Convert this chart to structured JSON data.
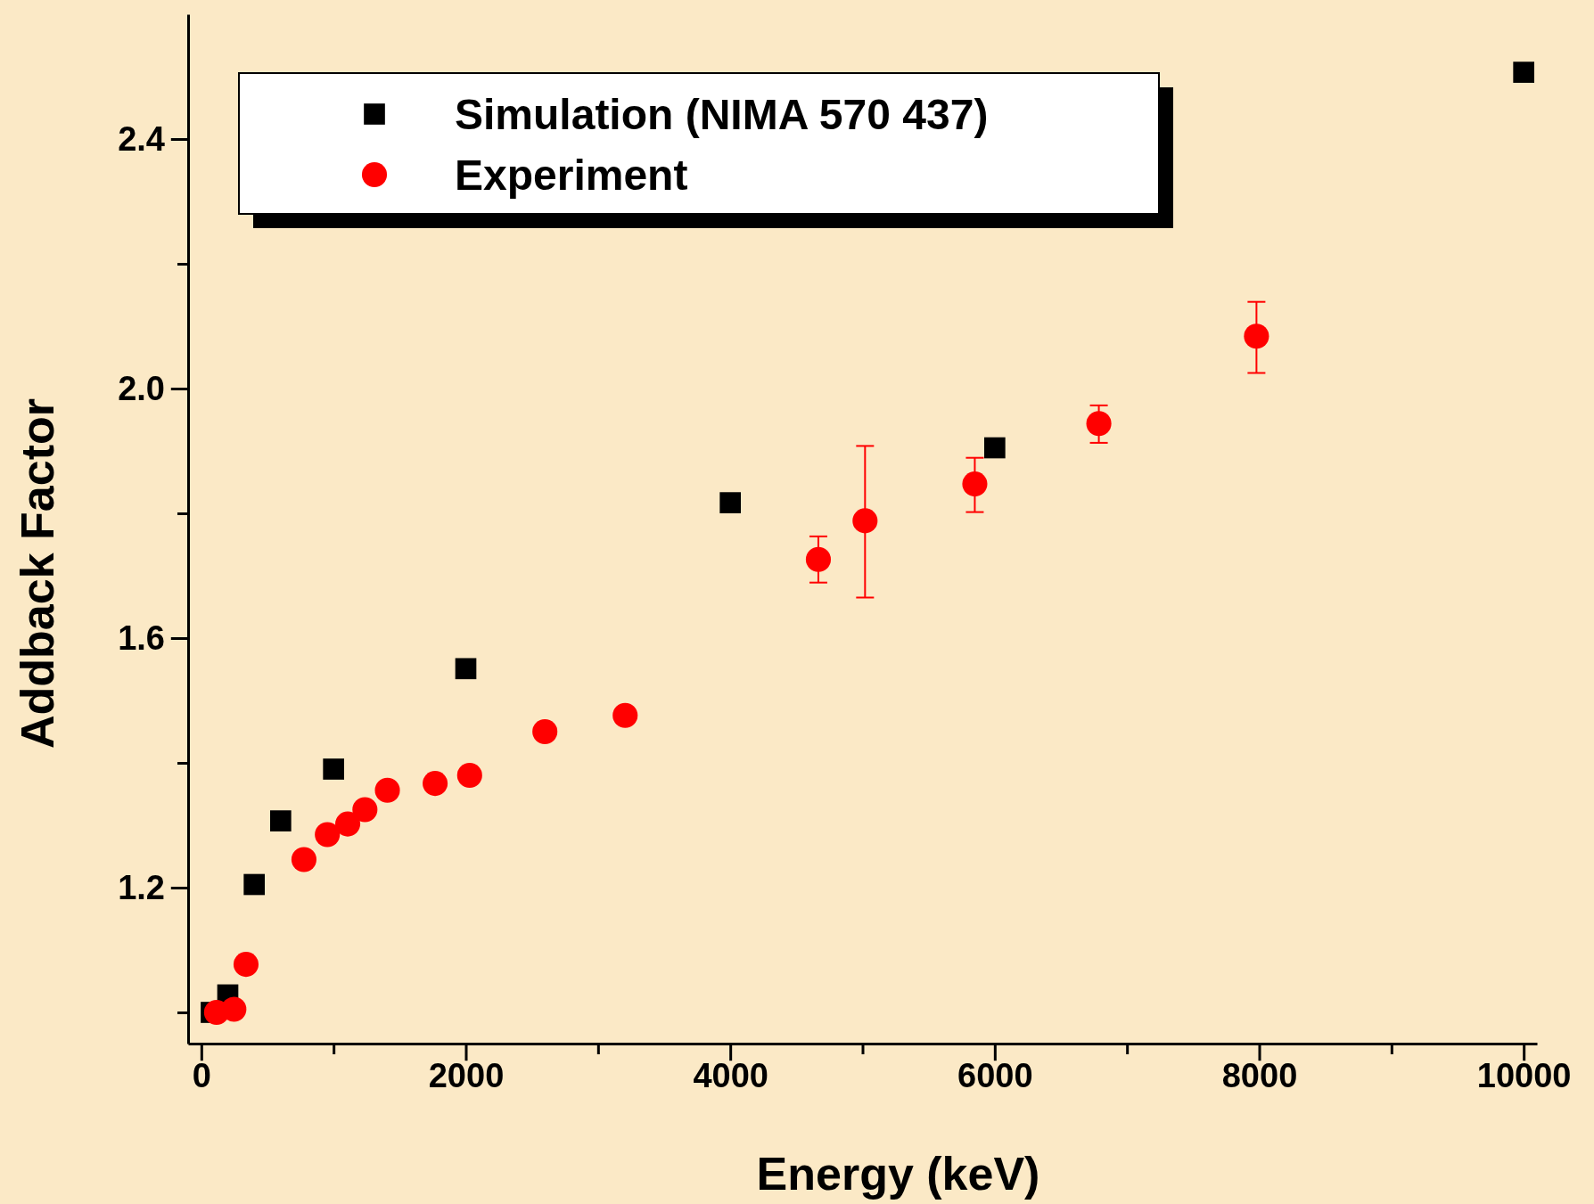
{
  "chart_data": {
    "type": "scatter",
    "xlabel": "Energy (keV)",
    "ylabel": "Addback Factor",
    "xlim": [
      -100,
      10100
    ],
    "ylim": [
      0.95,
      2.6
    ],
    "xticks": [
      0,
      {
        "value": 1000,
        "label": null
      },
      2000,
      {
        "value": 3000,
        "label": null
      },
      4000,
      {
        "value": 5000,
        "label": null
      },
      6000,
      {
        "value": 7000,
        "label": null
      },
      8000,
      {
        "value": 9000,
        "label": null
      },
      10000
    ],
    "yticks": [
      {
        "value": 1.0,
        "label": null
      },
      1.2,
      {
        "value": 1.4,
        "label": null
      },
      1.6,
      {
        "value": 1.8,
        "label": null
      },
      {
        "value": 2.0,
        "label": "2.0"
      },
      {
        "value": 2.2,
        "label": null
      },
      2.4
    ],
    "legend": "top left",
    "series": [
      {
        "name": "Simulation (NIMA 570 437)",
        "color": "#000000",
        "marker": "square",
        "x": [
          75,
          200,
          400,
          600,
          1000,
          2000,
          4000,
          6000,
          10000
        ],
        "values": [
          1.0,
          1.028,
          1.205,
          1.307,
          1.39,
          1.551,
          1.817,
          1.905,
          2.507
        ]
      },
      {
        "name": "Experiment",
        "color": "#ff0000",
        "marker": "circle",
        "x": [
          115,
          246,
          338,
          776,
          953,
          1107,
          1237,
          1407,
          1768,
          2029,
          2598,
          3205,
          4666,
          5019,
          5849,
          6787,
          7979
        ],
        "values": [
          1.0,
          1.005,
          1.077,
          1.245,
          1.285,
          1.302,
          1.325,
          1.356,
          1.367,
          1.38,
          1.45,
          1.476,
          1.726,
          1.788,
          1.847,
          1.944,
          2.084
        ],
        "errors": [
          null,
          null,
          null,
          null,
          null,
          null,
          null,
          null,
          null,
          null,
          null,
          0.005,
          0.037,
          [
            1.665,
            1.908
          ],
          [
            1.802,
            1.889
          ],
          [
            1.913,
            1.973
          ],
          [
            2.025,
            2.139
          ]
        ]
      }
    ]
  }
}
